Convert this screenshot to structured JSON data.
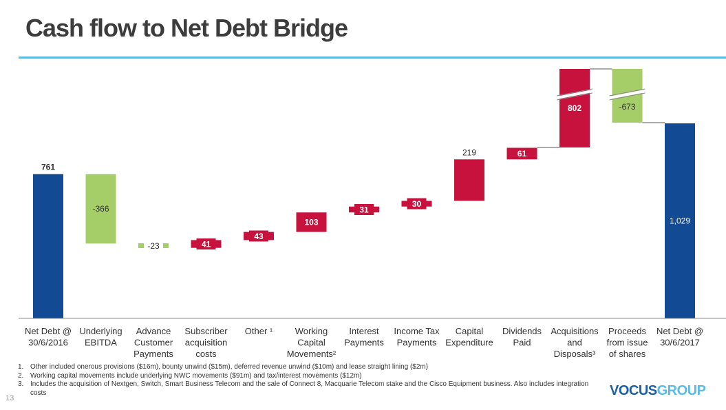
{
  "title": "Cash flow to Net Debt Bridge",
  "page_number": "13",
  "logo": {
    "part1": "VOCUS",
    "part2": "GROUP"
  },
  "footnotes": [
    {
      "num": "1.",
      "text": "Other included onerous provisions ($16m), bounty unwind ($15m), deferred revenue unwind ($10m) and lease straight lining ($2m)"
    },
    {
      "num": "2.",
      "text": "Working capital movements include underlying NWC movements ($91m) and tax/interest movements ($12m)"
    },
    {
      "num": "3.",
      "text": "Includes the acquisition of Nextgen, Switch, Smart Business Telecom and the sale of Connect 8, Macquarie Telecom stake and the Cisco Equipment business. Also includes integration costs"
    }
  ],
  "colors": {
    "total": "#134a94",
    "decrease": "#a6ce68",
    "increase": "#c8123e",
    "title_rule": "#5bbbe3"
  },
  "chart_data": {
    "type": "bar",
    "subtype": "waterfall",
    "title": "Cash flow to Net Debt Bridge",
    "axis_break": "Acquisitions and Disposals / Proceeds from issue of shares bars are truncated",
    "categories": [
      [
        "Net Debt @",
        "30/6/2016"
      ],
      [
        "Underlying",
        "EBITDA"
      ],
      [
        "Advance",
        "Customer",
        "Payments"
      ],
      [
        "Subscriber",
        "acquisition",
        "costs"
      ],
      [
        "Other ¹"
      ],
      [
        "Working",
        "Capital",
        "Movements²"
      ],
      [
        "Interest",
        "Payments"
      ],
      [
        "Income Tax",
        "Payments"
      ],
      [
        "Capital",
        "Expenditure"
      ],
      [
        "Dividends",
        "Paid"
      ],
      [
        "Acquisitions",
        "and",
        "Disposals³"
      ],
      [
        "Proceeds",
        "from issue",
        "of shares"
      ],
      [
        "Net Debt @",
        "30/6/2017"
      ]
    ],
    "values": [
      761,
      -366,
      -23,
      41,
      43,
      103,
      31,
      30,
      219,
      61,
      802,
      -673,
      1029
    ],
    "labels": [
      "761",
      "-366",
      "-23",
      "41",
      "43",
      "103",
      "31",
      "30",
      "219",
      "61",
      "802",
      "-673",
      "1,029"
    ],
    "kinds": [
      "total",
      "decrease",
      "decrease",
      "increase",
      "increase",
      "increase",
      "increase",
      "increase",
      "increase",
      "increase",
      "increase",
      "decrease",
      "total"
    ]
  }
}
